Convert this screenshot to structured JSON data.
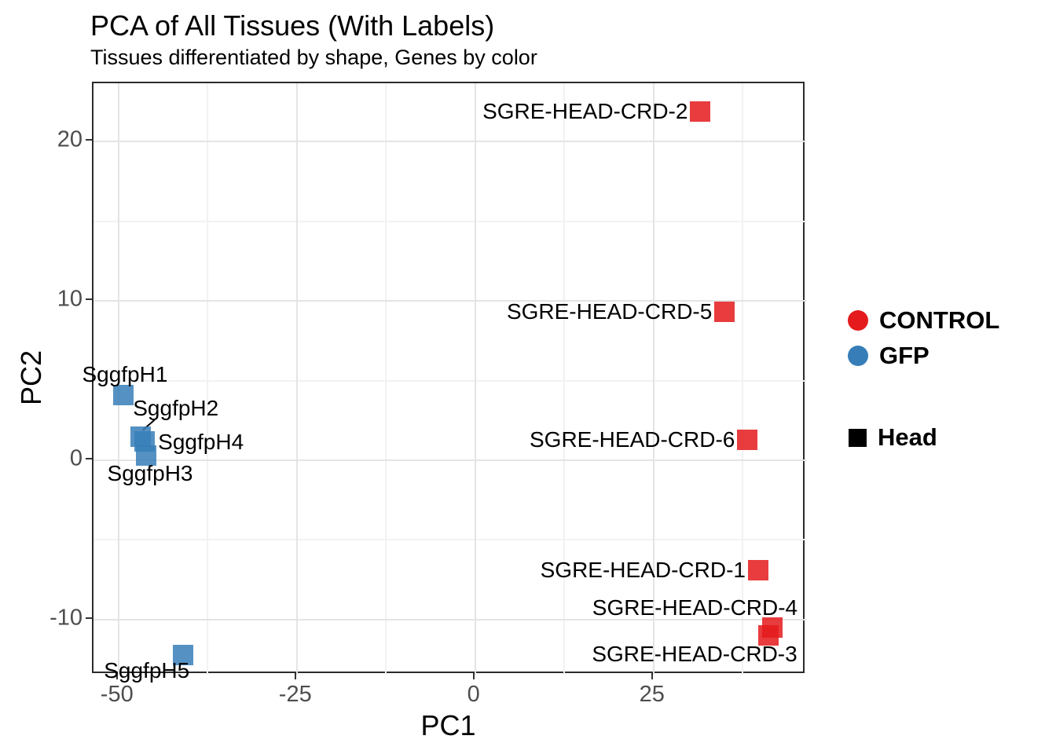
{
  "header": {
    "title": "PCA of All Tissues (With Labels)",
    "subtitle": "Tissues differentiated by shape, Genes by color"
  },
  "chart_data": {
    "type": "scatter",
    "title": "PCA of All Tissues (With Labels)",
    "subtitle": "Tissues differentiated by shape, Genes by color",
    "xlabel": "PC1",
    "ylabel": "PC2",
    "xlim": [
      -53.5,
      46.4
    ],
    "ylim": [
      -13.45,
      23.65
    ],
    "x_ticks": [
      -50,
      -25,
      0,
      25
    ],
    "y_ticks": [
      -10,
      0,
      10,
      20
    ],
    "x_minor_gridlines": [
      -37.5,
      -12.5,
      12.5,
      37.5
    ],
    "y_minor_gridlines": [
      -5,
      5,
      15
    ],
    "grid": true,
    "legend_position": "right",
    "point_shape": "square",
    "series": [
      {
        "name": "CONTROL",
        "color": "#E41A1C",
        "shape": "square",
        "points": [
          {
            "label": "SGRE-HEAD-CRD-1",
            "x": 39.9,
            "y": -7.0
          },
          {
            "label": "SGRE-HEAD-CRD-2",
            "x": 31.8,
            "y": 21.8
          },
          {
            "label": "SGRE-HEAD-CRD-3",
            "x": 41.3,
            "y": -11.1
          },
          {
            "label": "SGRE-HEAD-CRD-4",
            "x": 41.9,
            "y": -10.6
          },
          {
            "label": "SGRE-HEAD-CRD-5",
            "x": 35.2,
            "y": 9.2
          },
          {
            "label": "SGRE-HEAD-CRD-6",
            "x": 38.4,
            "y": 1.2
          }
        ]
      },
      {
        "name": "GFP",
        "color": "#377EB8",
        "shape": "square",
        "points": [
          {
            "label": "SggfpH1",
            "x": -49.1,
            "y": 4.0
          },
          {
            "label": "SggfpH2",
            "x": -46.7,
            "y": 1.4
          },
          {
            "label": "SggfpH3",
            "x": -45.9,
            "y": 0.2
          },
          {
            "label": "SggfpH4",
            "x": -46.1,
            "y": 1.1
          },
          {
            "label": "SggfpH5",
            "x": -40.7,
            "y": -12.3
          }
        ]
      }
    ],
    "color_legend": [
      {
        "label": "CONTROL",
        "color": "#E41A1C"
      },
      {
        "label": "GFP",
        "color": "#377EB8"
      }
    ],
    "shape_legend": [
      {
        "label": "Head",
        "shape": "square",
        "color": "#000000"
      }
    ]
  }
}
